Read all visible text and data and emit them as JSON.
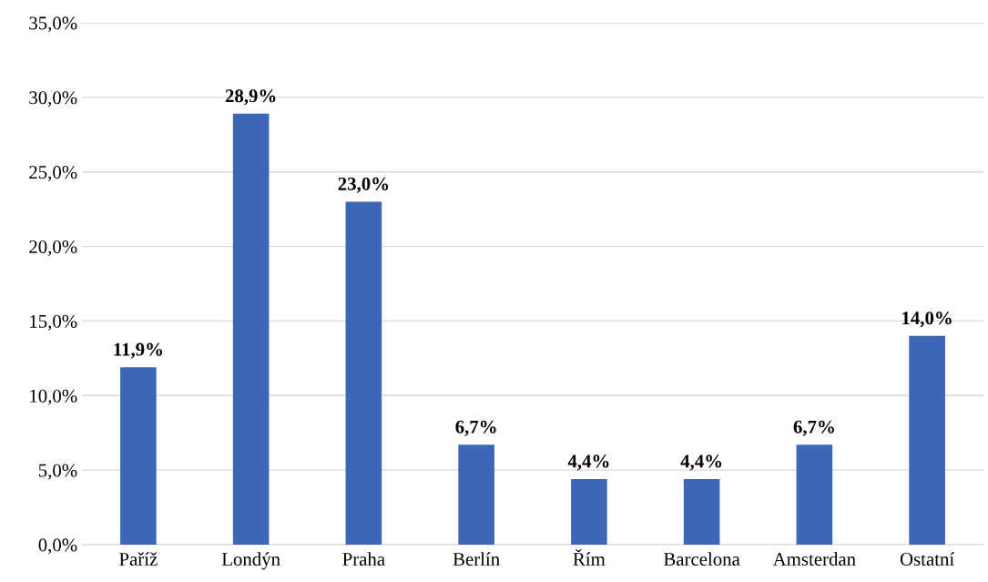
{
  "chart_data": {
    "type": "bar",
    "categories": [
      "Paříž",
      "Londýn",
      "Praha",
      "Berlín",
      "Řím",
      "Barcelona",
      "Amsterdan",
      "Ostatní"
    ],
    "values": [
      11.9,
      28.9,
      23.0,
      6.7,
      4.4,
      4.4,
      6.7,
      14.0
    ],
    "value_labels": [
      "11,9%",
      "28,9%",
      "23,0%",
      "6,7%",
      "4,4%",
      "4,4%",
      "6,7%",
      "14,0%"
    ],
    "color": "#3d66b8",
    "ylim": [
      0,
      35
    ],
    "yticks": [
      {
        "value": 0,
        "label": "0,0%"
      },
      {
        "value": 5,
        "label": "5,0%"
      },
      {
        "value": 10,
        "label": "10,0%"
      },
      {
        "value": 15,
        "label": "15,0%"
      },
      {
        "value": 20,
        "label": "20,0%"
      },
      {
        "value": 25,
        "label": "25,0%"
      },
      {
        "value": 30,
        "label": "30,0%"
      },
      {
        "value": 35,
        "label": "35,0%"
      }
    ],
    "grid": "y",
    "legend": false
  }
}
